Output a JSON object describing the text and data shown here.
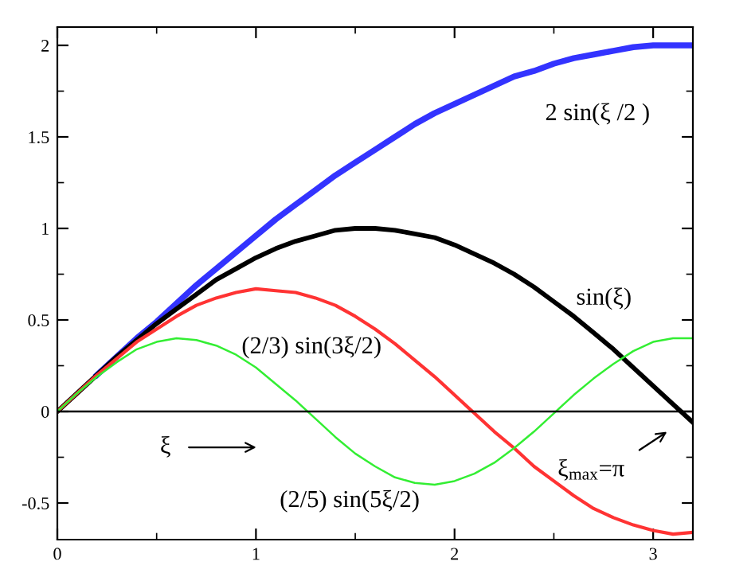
{
  "chart_data": {
    "type": "line",
    "x": [
      0,
      0.1,
      0.2,
      0.3,
      0.4,
      0.5,
      0.6,
      0.7,
      0.8,
      0.9,
      1.0,
      1.1,
      1.2,
      1.3,
      1.4,
      1.5,
      1.6,
      1.7,
      1.8,
      1.9,
      2.0,
      2.1,
      2.2,
      2.3,
      2.4,
      2.5,
      2.6,
      2.7,
      2.8,
      2.9,
      3.0,
      3.1,
      3.2
    ],
    "series": [
      {
        "color": "#3333ff",
        "values": [
          null,
          null,
          0.2,
          0.3,
          0.4,
          0.49,
          0.59,
          0.69,
          0.78,
          0.87,
          0.96,
          1.05,
          1.13,
          1.21,
          1.29,
          1.36,
          1.43,
          1.5,
          1.57,
          1.63,
          1.68,
          1.73,
          1.78,
          1.83,
          1.86,
          1.9,
          1.93,
          1.95,
          1.97,
          1.99,
          2.0,
          2.0,
          2.0
        ]
      },
      {
        "color": "#000000",
        "values": [
          0,
          0.1,
          0.2,
          0.3,
          0.39,
          0.48,
          0.56,
          0.64,
          0.72,
          0.78,
          0.84,
          0.89,
          0.93,
          0.96,
          0.99,
          1.0,
          1.0,
          0.99,
          0.97,
          0.95,
          0.91,
          0.86,
          0.81,
          0.75,
          0.68,
          0.6,
          0.52,
          0.43,
          0.34,
          0.24,
          0.14,
          0.04,
          -0.06
        ]
      },
      {
        "color": "#ff3333",
        "values": [
          0,
          0.1,
          0.2,
          0.29,
          0.38,
          0.45,
          0.52,
          0.58,
          0.62,
          0.65,
          0.67,
          0.66,
          0.65,
          0.62,
          0.58,
          0.52,
          0.45,
          0.37,
          0.28,
          0.19,
          0.09,
          -0.01,
          -0.11,
          -0.2,
          -0.3,
          -0.38,
          -0.46,
          -0.53,
          -0.58,
          -0.62,
          -0.65,
          -0.67,
          -0.66
        ]
      },
      {
        "color": "#33ee33",
        "values": [
          0,
          0.1,
          0.19,
          0.27,
          0.34,
          0.38,
          0.4,
          0.39,
          0.36,
          0.31,
          0.24,
          0.15,
          0.06,
          -0.04,
          -0.14,
          -0.23,
          -0.3,
          -0.36,
          -0.39,
          -0.4,
          -0.38,
          -0.34,
          -0.28,
          -0.2,
          -0.11,
          -0.01,
          0.09,
          0.18,
          0.26,
          0.33,
          0.38,
          0.4,
          0.4
        ]
      }
    ],
    "xlim": [
      0,
      3.2
    ],
    "ylim": [
      -0.7,
      2.1
    ],
    "xticks": [
      0,
      1,
      2,
      3
    ],
    "yticks": [
      -0.5,
      0,
      0.5,
      1,
      1.5,
      2
    ],
    "ref_lines": [
      {
        "axis": "y",
        "value": 0,
        "color": "#000000"
      }
    ],
    "annotations": [
      "2 sin(ξ /2 )",
      "sin(ξ)",
      "(2/3) sin(3ξ/2)",
      "(2/5) sin(5ξ/2)",
      "ξ",
      "ξ$_{max}$=π"
    ],
    "grid": false,
    "legend": false,
    "marker": "none",
    "line_style": "solid"
  }
}
